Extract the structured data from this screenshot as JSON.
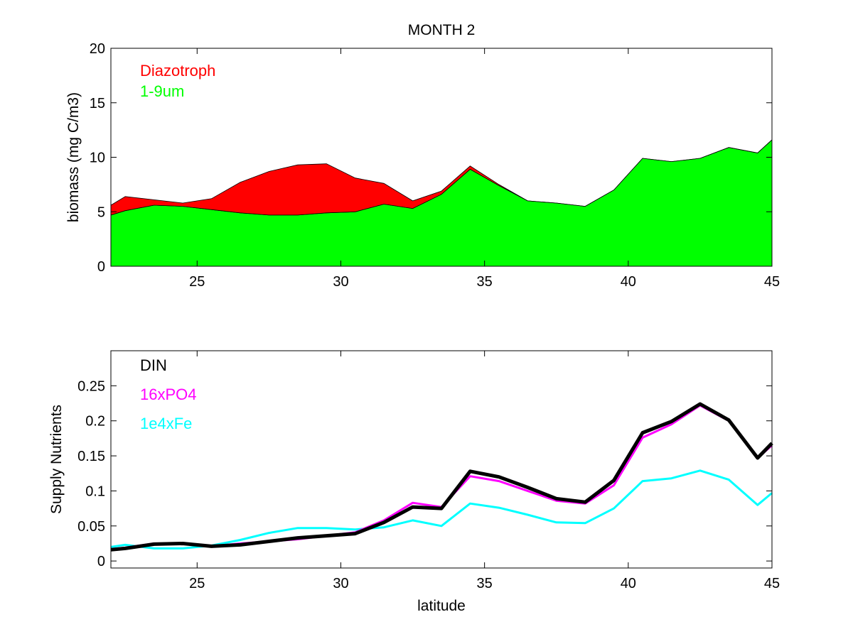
{
  "chart_data": [
    {
      "type": "area",
      "stacked": true,
      "title": "MONTH 2",
      "xlabel": "",
      "ylabel": "biomass (mg C/m3)",
      "xlim": [
        22,
        45
      ],
      "ylim": [
        0,
        20
      ],
      "xticks": [
        25,
        30,
        35,
        40,
        45
      ],
      "yticks": [
        0,
        5,
        10,
        15,
        20
      ],
      "legend": "top-left",
      "x": [
        22,
        22.5,
        23.5,
        24.5,
        25.5,
        26.5,
        27.5,
        28.5,
        29.5,
        30.5,
        31.5,
        32.5,
        33.5,
        34.5,
        35.5,
        36.5,
        37.5,
        38.5,
        39.5,
        40.5,
        41.5,
        42.5,
        43.5,
        44.5,
        45
      ],
      "series": [
        {
          "name": "1-9um",
          "color": "#00ff00",
          "values": [
            4.7,
            5.1,
            5.6,
            5.5,
            5.2,
            4.9,
            4.7,
            4.7,
            4.9,
            5.0,
            5.7,
            5.3,
            6.6,
            8.9,
            7.4,
            6.0,
            5.8,
            5.5,
            7.0,
            9.9,
            9.6,
            9.9,
            10.9,
            10.4,
            11.6
          ]
        },
        {
          "name": "Diazotroph",
          "color": "#ff0000",
          "values": [
            0.9,
            1.3,
            0.5,
            0.3,
            1.0,
            2.8,
            4.0,
            4.6,
            4.5,
            3.1,
            1.9,
            0.7,
            0.3,
            0.3,
            0.1,
            0,
            0,
            0,
            0,
            0,
            0,
            0,
            0,
            0,
            0
          ]
        }
      ]
    },
    {
      "type": "line",
      "title": "",
      "xlabel": "latitude",
      "ylabel": "Supply Nutrients",
      "xlim": [
        22,
        45
      ],
      "ylim": [
        -0.01,
        0.3
      ],
      "xticks": [
        25,
        30,
        35,
        40,
        45
      ],
      "yticks": [
        0,
        0.05,
        0.1,
        0.15,
        0.2,
        0.25
      ],
      "ytick_labels": [
        "0",
        "0.05",
        "0.1",
        "0.15",
        "0.2",
        "0.25"
      ],
      "legend": "top-left",
      "x": [
        22,
        22.5,
        23.5,
        24.5,
        25.5,
        26.5,
        27.5,
        28.5,
        29.5,
        30.5,
        31.5,
        32.5,
        33.5,
        34.5,
        35.5,
        36.5,
        37.5,
        38.5,
        39.5,
        40.5,
        41.5,
        42.5,
        43.5,
        44.5,
        45
      ],
      "series": [
        {
          "name": "1e4xFe",
          "color": "#00ffff",
          "width": 3,
          "values": [
            0.02,
            0.023,
            0.018,
            0.018,
            0.022,
            0.03,
            0.04,
            0.047,
            0.047,
            0.045,
            0.048,
            0.058,
            0.05,
            0.082,
            0.076,
            0.066,
            0.055,
            0.054,
            0.075,
            0.114,
            0.118,
            0.129,
            0.116,
            0.08,
            0.097
          ]
        },
        {
          "name": "16xPO4",
          "color": "#ff00ff",
          "width": 3,
          "values": [
            0.017,
            0.019,
            0.025,
            0.025,
            0.021,
            0.025,
            0.028,
            0.031,
            0.036,
            0.041,
            0.058,
            0.083,
            0.077,
            0.121,
            0.114,
            0.1,
            0.086,
            0.082,
            0.108,
            0.176,
            0.195,
            0.222,
            0.2,
            0.147,
            0.165
          ]
        },
        {
          "name": "DIN",
          "color": "#000000",
          "width": 5,
          "values": [
            0.016,
            0.018,
            0.024,
            0.025,
            0.021,
            0.023,
            0.028,
            0.033,
            0.036,
            0.039,
            0.055,
            0.077,
            0.075,
            0.128,
            0.12,
            0.105,
            0.089,
            0.084,
            0.115,
            0.183,
            0.199,
            0.224,
            0.201,
            0.147,
            0.168
          ]
        }
      ]
    }
  ]
}
